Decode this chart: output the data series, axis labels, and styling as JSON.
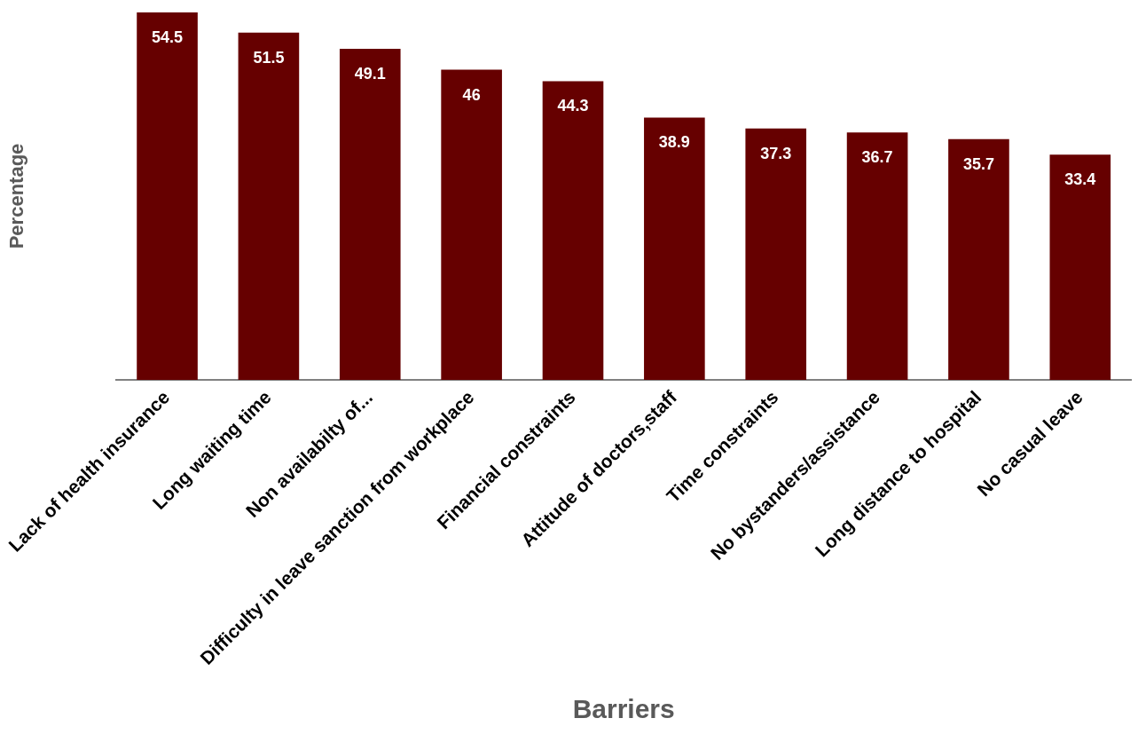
{
  "chart_data": {
    "type": "bar",
    "xlabel": "Barriers",
    "ylabel": "Percentage",
    "categories": [
      "Lack of health insurance",
      "Long waiting time",
      "Non availabilty of...",
      "Difficulty in leave sanction from workplace",
      "Financial constraints",
      "Attitude of doctors,staff",
      "Time constraints",
      "No bystanders/assistance",
      "Long distance to hospital",
      "No casual leave"
    ],
    "values": [
      54.5,
      51.5,
      49.1,
      46,
      44.3,
      38.9,
      37.3,
      36.7,
      35.7,
      33.4
    ],
    "color": "#660000",
    "data_labels": true,
    "grid": false,
    "legend": false,
    "tick_labels": "x"
  }
}
